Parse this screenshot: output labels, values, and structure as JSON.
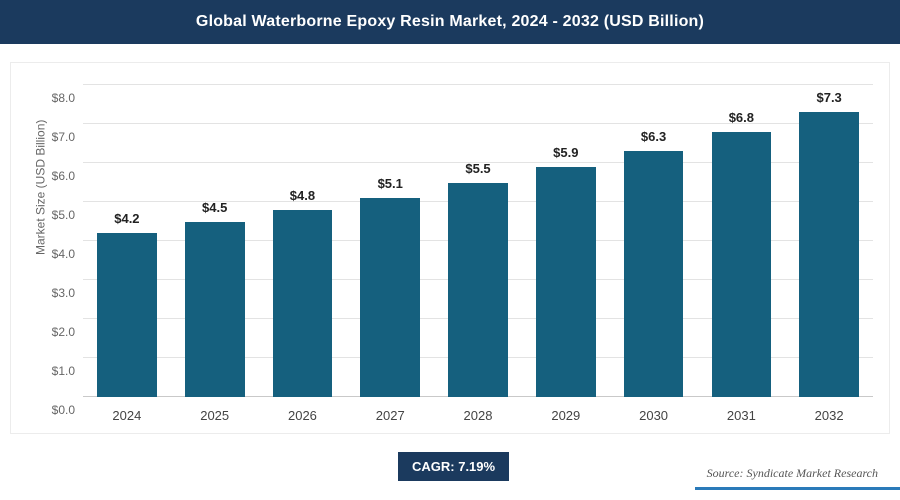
{
  "header": {
    "title": "Global Waterborne Epoxy Resin Market, 2024 - 2032 (USD Billion)"
  },
  "chart_data": {
    "type": "bar",
    "title": "Global Waterborne Epoxy Resin Market, 2024 - 2032 (USD Billion)",
    "categories": [
      "2024",
      "2025",
      "2026",
      "2027",
      "2028",
      "2029",
      "2030",
      "2031",
      "2032"
    ],
    "values": [
      4.2,
      4.5,
      4.8,
      5.1,
      5.5,
      5.9,
      6.3,
      6.8,
      7.3
    ],
    "value_labels": [
      "$4.2",
      "$4.5",
      "$4.8",
      "$5.1",
      "$5.5",
      "$5.9",
      "$6.3",
      "$6.8",
      "$7.3"
    ],
    "xlabel": "",
    "ylabel": "Market Size (USD Billion)",
    "ylim": [
      0,
      8
    ],
    "y_ticks": [
      {
        "label": "$0.0",
        "value": 0
      },
      {
        "label": "$1.0",
        "value": 1
      },
      {
        "label": "$2.0",
        "value": 2
      },
      {
        "label": "$3.0",
        "value": 3
      },
      {
        "label": "$4.0",
        "value": 4
      },
      {
        "label": "$5.0",
        "value": 5
      },
      {
        "label": "$6.0",
        "value": 6
      },
      {
        "label": "$7.0",
        "value": 7
      },
      {
        "label": "$8.0",
        "value": 8
      }
    ],
    "grid": true,
    "legend": false
  },
  "footer": {
    "cagr_label": "CAGR: 7.19%",
    "source": "Source: Syndicate Market Research"
  },
  "colors": {
    "header_bg": "#1b3a5e",
    "bar": "#15607e",
    "cagr_bg": "#1b3a5e",
    "accent_line": "#2a7ab9",
    "source_text": "#555555"
  }
}
